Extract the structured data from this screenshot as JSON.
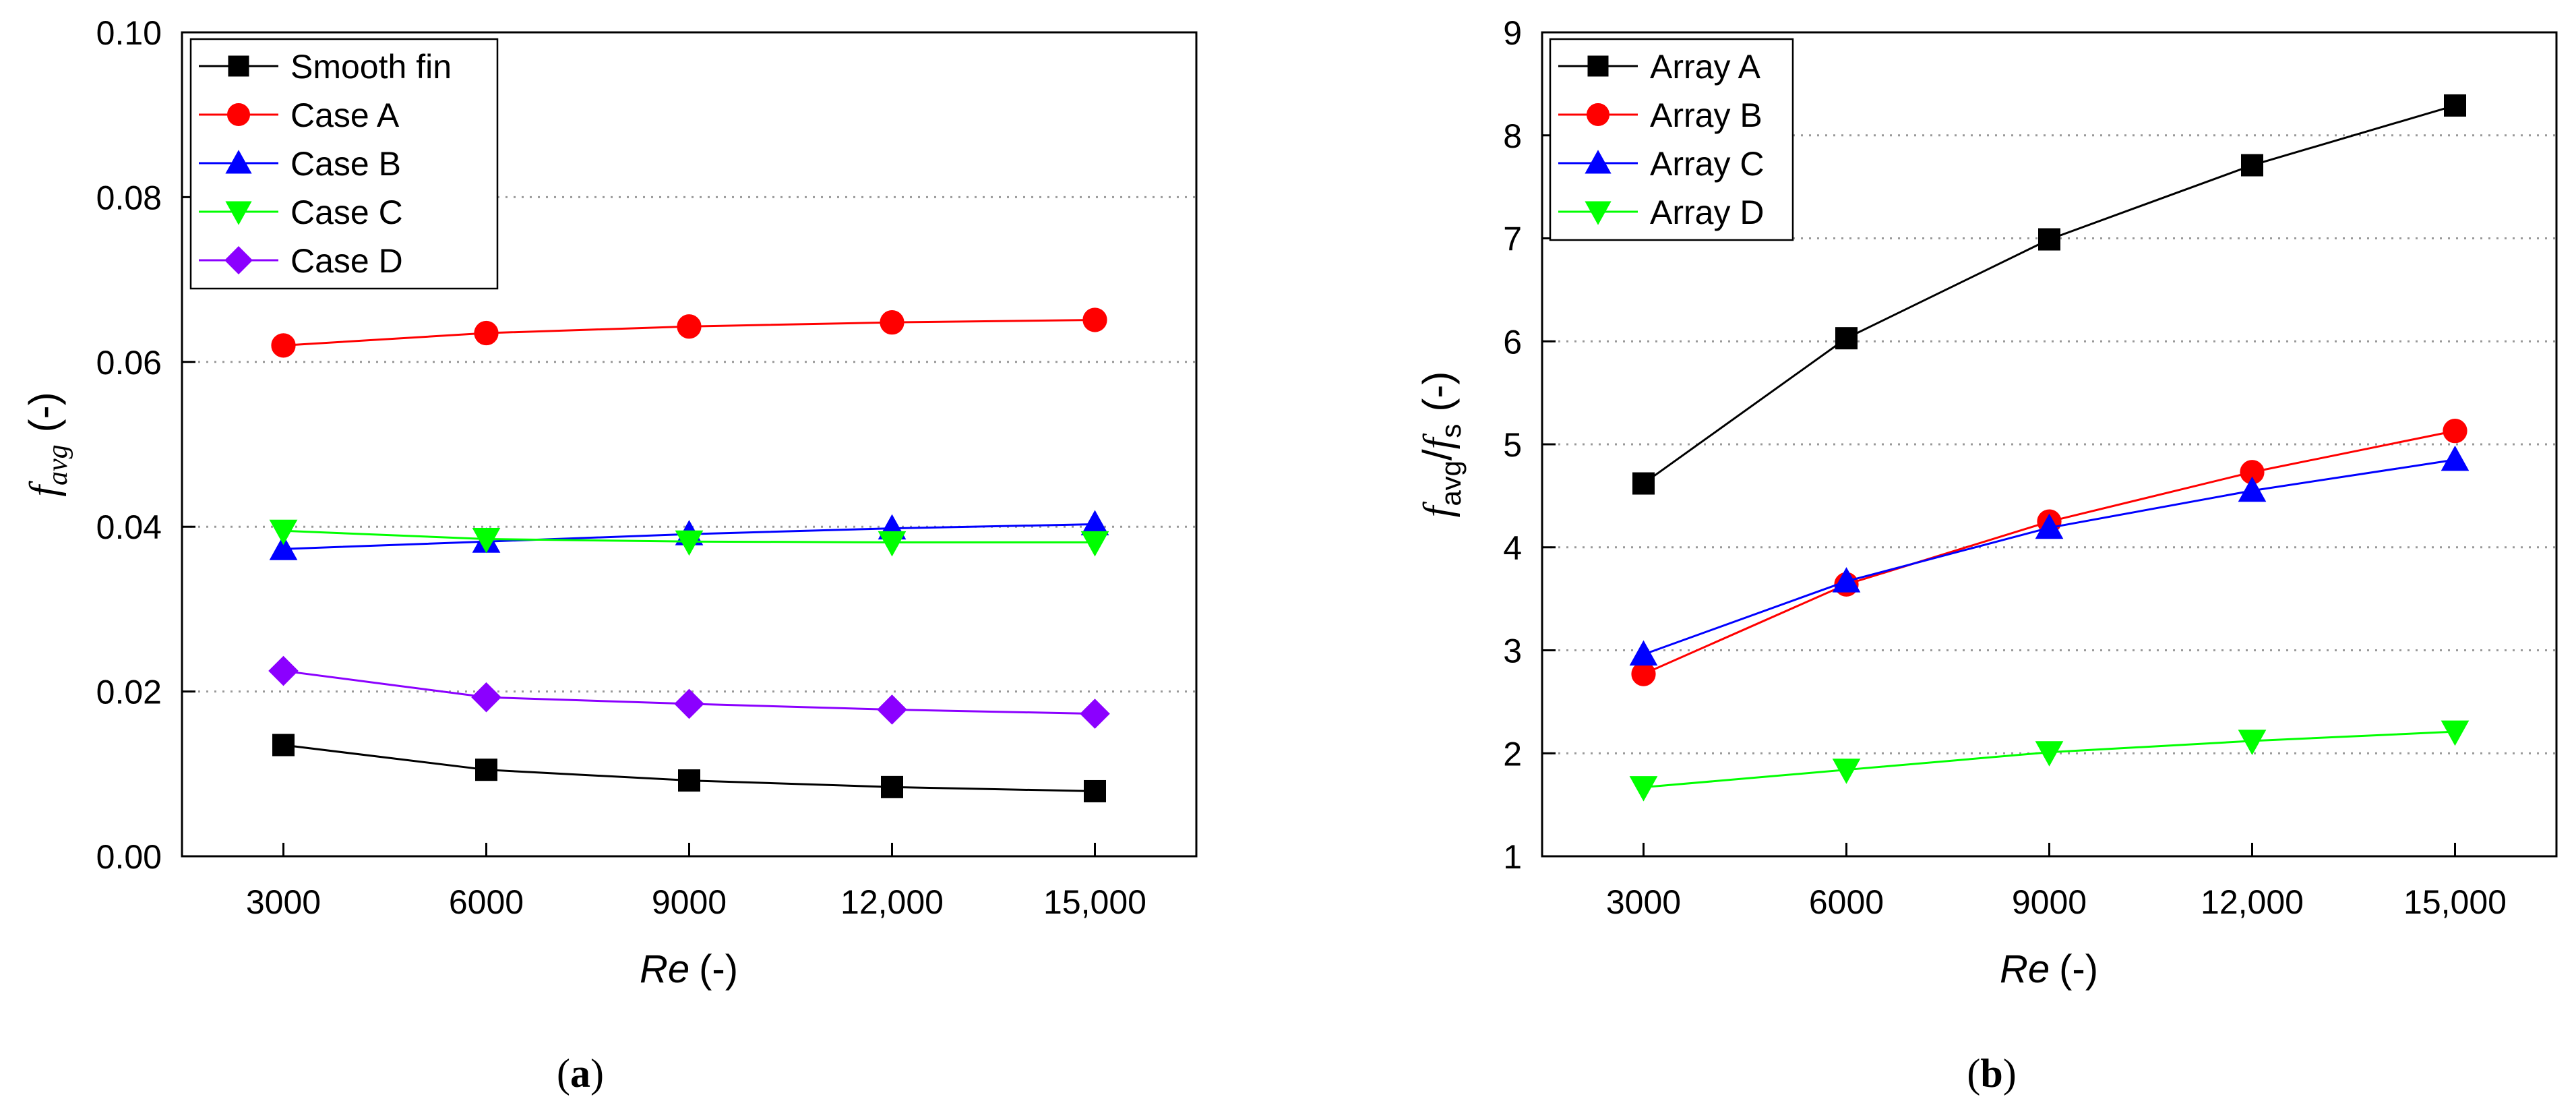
{
  "chart_data": [
    {
      "type": "line",
      "panel": "(a)",
      "panel_letter": "a",
      "xlabel": "Re",
      "xlabel_unit": "(-)",
      "ylabel_main": "f",
      "ylabel_sub": "avg",
      "ylabel_unit": "(-)",
      "x": [
        3000,
        6000,
        9000,
        12000,
        15000
      ],
      "xlim": [
        1500,
        16500
      ],
      "ylim": [
        0.0,
        0.1
      ],
      "xticks": [
        3000,
        6000,
        9000,
        12000,
        15000
      ],
      "xtick_labels": [
        "3000",
        "6000",
        "9000",
        "12,000",
        "15,000"
      ],
      "yticks": [
        0.0,
        0.02,
        0.04,
        0.06,
        0.08,
        0.1
      ],
      "ytick_labels": [
        "0.00",
        "0.02",
        "0.04",
        "0.06",
        "0.08",
        "0.10"
      ],
      "grid": "horizontal dotted",
      "legend": "top-left",
      "series": [
        {
          "name": "Smooth fin",
          "color": "#000000",
          "marker": "square",
          "values": [
            0.0135,
            0.0105,
            0.0092,
            0.0084,
            0.0079
          ]
        },
        {
          "name": "Case A",
          "color": "#ff0000",
          "marker": "circle",
          "values": [
            0.062,
            0.0635,
            0.0643,
            0.0648,
            0.0651
          ]
        },
        {
          "name": "Case B",
          "color": "#0000ff",
          "marker": "triangle-up",
          "values": [
            0.0373,
            0.0382,
            0.0391,
            0.0398,
            0.0403
          ]
        },
        {
          "name": "Case C",
          "color": "#00ff00",
          "marker": "triangle-down",
          "values": [
            0.0395,
            0.0385,
            0.0382,
            0.0381,
            0.0381
          ]
        },
        {
          "name": "Case D",
          "color": "#8b00ff",
          "marker": "diamond",
          "values": [
            0.0225,
            0.0193,
            0.0185,
            0.0178,
            0.0173
          ]
        }
      ]
    },
    {
      "type": "line",
      "panel": "(b)",
      "panel_letter": "b",
      "xlabel": "Re",
      "xlabel_unit": "(-)",
      "ylabel_main1": "f",
      "ylabel_sub1": "avg",
      "ylabel_sep": "/",
      "ylabel_main2": "f",
      "ylabel_sub2": "s",
      "ylabel_unit": "(-)",
      "x": [
        3000,
        6000,
        9000,
        12000,
        15000
      ],
      "xlim": [
        1500,
        16500
      ],
      "ylim": [
        1,
        9
      ],
      "xticks": [
        3000,
        6000,
        9000,
        12000,
        15000
      ],
      "xtick_labels": [
        "3000",
        "6000",
        "9000",
        "12,000",
        "15,000"
      ],
      "yticks": [
        1,
        2,
        3,
        4,
        5,
        6,
        7,
        8,
        9
      ],
      "ytick_labels": [
        "1",
        "2",
        "3",
        "4",
        "5",
        "6",
        "7",
        "8",
        "9"
      ],
      "grid": "horizontal dotted",
      "legend": "top-left",
      "series": [
        {
          "name": "Array A",
          "color": "#000000",
          "marker": "square",
          "values": [
            4.62,
            6.03,
            6.99,
            7.71,
            8.29
          ]
        },
        {
          "name": "Array B",
          "color": "#ff0000",
          "marker": "circle",
          "values": [
            2.77,
            3.64,
            4.25,
            4.73,
            5.13
          ]
        },
        {
          "name": "Array C",
          "color": "#0000ff",
          "marker": "triangle-up",
          "values": [
            2.96,
            3.67,
            4.19,
            4.55,
            4.85
          ]
        },
        {
          "name": "Array D",
          "color": "#00ff00",
          "marker": "triangle-down",
          "values": [
            1.67,
            1.84,
            2.01,
            2.12,
            2.21
          ]
        }
      ]
    }
  ]
}
